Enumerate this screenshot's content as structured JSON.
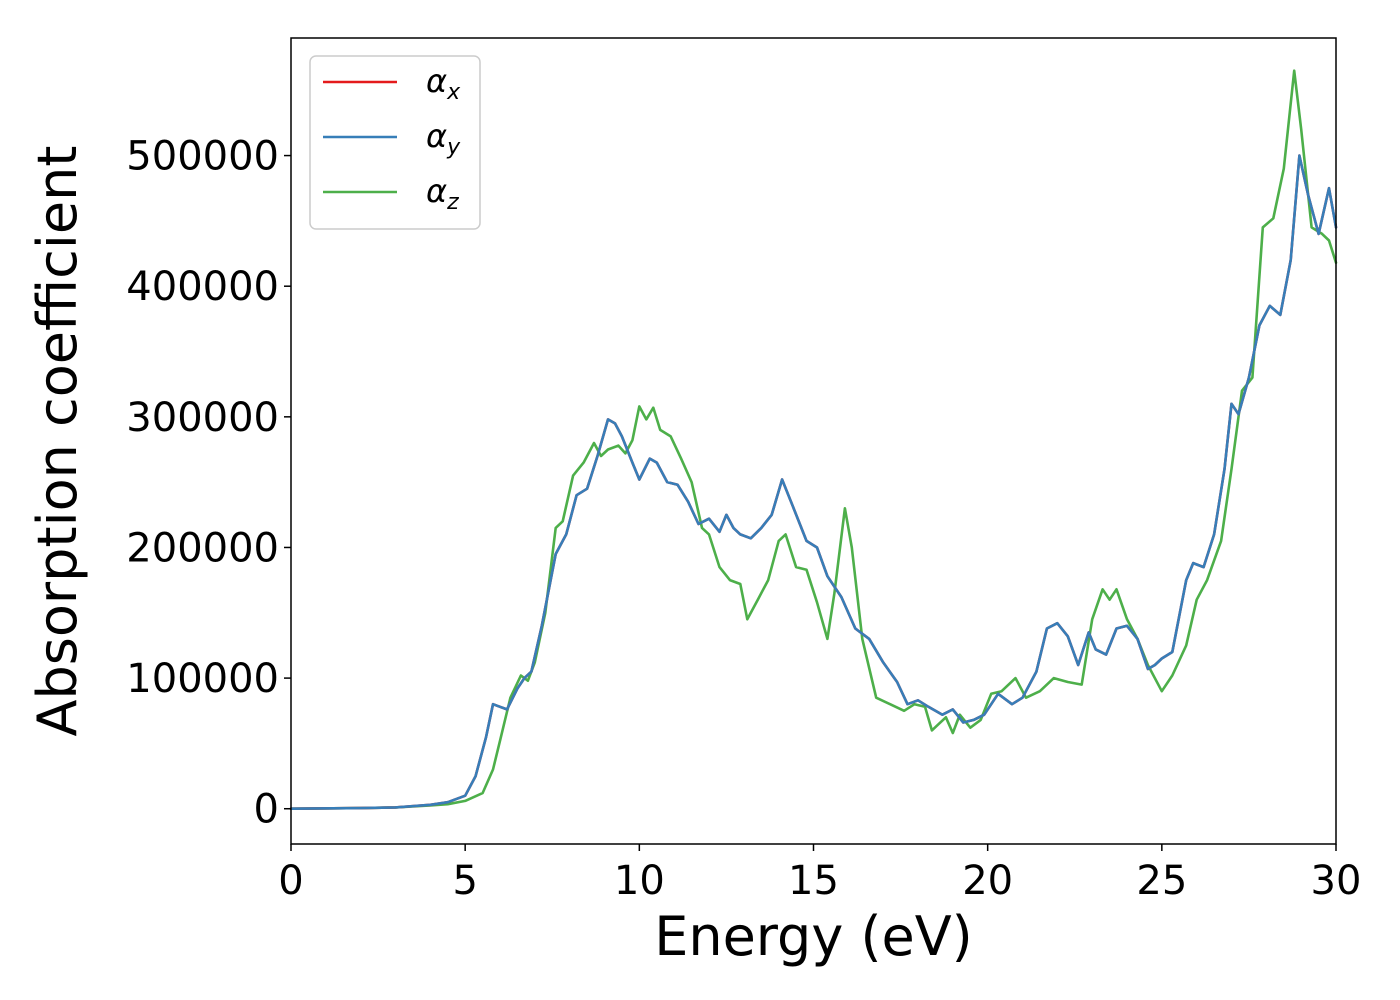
{
  "chart_data": {
    "type": "line",
    "xlabel": "Energy (eV)",
    "ylabel": "Absorption coefficient",
    "xlim": [
      0,
      30
    ],
    "ylim": [
      -27000,
      590000
    ],
    "xticks": [
      0,
      5,
      10,
      15,
      20,
      25,
      30
    ],
    "xtick_labels": [
      "0",
      "5",
      "10",
      "15",
      "20",
      "25",
      "30"
    ],
    "yticks": [
      0,
      100000,
      200000,
      300000,
      400000,
      500000
    ],
    "ytick_labels": [
      "0",
      "100000",
      "200000",
      "300000",
      "400000",
      "500000"
    ],
    "grid": false,
    "legend_position": "upper-left",
    "series": [
      {
        "name": "αx",
        "symbol": "α",
        "subscript": "x",
        "color": "#e41a1c",
        "x": [
          0,
          2,
          3,
          4,
          4.5,
          5,
          5.3,
          5.6,
          5.8,
          6.0,
          6.2,
          6.5,
          6.7,
          6.9,
          7.2,
          7.6,
          7.9,
          8.2,
          8.5,
          8.8,
          9.1,
          9.3,
          9.5,
          9.8,
          10.0,
          10.3,
          10.5,
          10.8,
          11.1,
          11.4,
          11.7,
          12.0,
          12.3,
          12.5,
          12.7,
          12.9,
          13.2,
          13.5,
          13.8,
          14.1,
          14.4,
          14.8,
          15.1,
          15.4,
          15.8,
          16.2,
          16.6,
          17.0,
          17.4,
          17.7,
          18.0,
          18.3,
          18.7,
          19.0,
          19.3,
          19.6,
          19.9,
          20.3,
          20.7,
          21.0,
          21.4,
          21.7,
          22.0,
          22.3,
          22.6,
          22.9,
          23.1,
          23.4,
          23.7,
          24.0,
          24.3,
          24.6,
          24.8,
          25.0,
          25.3,
          25.7,
          25.9,
          26.2,
          26.5,
          26.8,
          27.0,
          27.2,
          27.5,
          27.8,
          28.1,
          28.4,
          28.7,
          28.95,
          29.2,
          29.5,
          29.8,
          30.0
        ],
        "y": [
          0,
          500,
          1000,
          3000,
          5000,
          10000,
          25000,
          55000,
          80000,
          78000,
          76000,
          92000,
          100000,
          105000,
          140000,
          195000,
          210000,
          240000,
          245000,
          270000,
          298000,
          295000,
          285000,
          265000,
          252000,
          268000,
          265000,
          250000,
          248000,
          235000,
          218000,
          222000,
          212000,
          225000,
          215000,
          210000,
          207000,
          215000,
          225000,
          252000,
          232000,
          205000,
          200000,
          178000,
          162000,
          138000,
          130000,
          112000,
          97000,
          80000,
          83000,
          78000,
          72000,
          76000,
          66000,
          68000,
          72000,
          88000,
          80000,
          85000,
          105000,
          138000,
          142000,
          132000,
          110000,
          135000,
          122000,
          118000,
          138000,
          140000,
          130000,
          107000,
          110000,
          115000,
          120000,
          175000,
          188000,
          185000,
          210000,
          260000,
          310000,
          302000,
          330000,
          370000,
          385000,
          378000,
          420000,
          500000,
          470000,
          440000,
          475000,
          445000
        ]
      },
      {
        "name": "αy",
        "symbol": "α",
        "subscript": "y",
        "color": "#377eb8",
        "x": [
          0,
          2,
          3,
          4,
          4.5,
          5,
          5.3,
          5.6,
          5.8,
          6.0,
          6.2,
          6.5,
          6.7,
          6.9,
          7.2,
          7.6,
          7.9,
          8.2,
          8.5,
          8.8,
          9.1,
          9.3,
          9.5,
          9.8,
          10.0,
          10.3,
          10.5,
          10.8,
          11.1,
          11.4,
          11.7,
          12.0,
          12.3,
          12.5,
          12.7,
          12.9,
          13.2,
          13.5,
          13.8,
          14.1,
          14.4,
          14.8,
          15.1,
          15.4,
          15.8,
          16.2,
          16.6,
          17.0,
          17.4,
          17.7,
          18.0,
          18.3,
          18.7,
          19.0,
          19.3,
          19.6,
          19.9,
          20.3,
          20.7,
          21.0,
          21.4,
          21.7,
          22.0,
          22.3,
          22.6,
          22.9,
          23.1,
          23.4,
          23.7,
          24.0,
          24.3,
          24.6,
          24.8,
          25.0,
          25.3,
          25.7,
          25.9,
          26.2,
          26.5,
          26.8,
          27.0,
          27.2,
          27.5,
          27.8,
          28.1,
          28.4,
          28.7,
          28.95,
          29.2,
          29.5,
          29.8,
          30.0
        ],
        "y": [
          0,
          500,
          1000,
          3000,
          5000,
          10000,
          25000,
          55000,
          80000,
          78000,
          76000,
          92000,
          100000,
          105000,
          140000,
          195000,
          210000,
          240000,
          245000,
          270000,
          298000,
          295000,
          285000,
          265000,
          252000,
          268000,
          265000,
          250000,
          248000,
          235000,
          218000,
          222000,
          212000,
          225000,
          215000,
          210000,
          207000,
          215000,
          225000,
          252000,
          232000,
          205000,
          200000,
          178000,
          162000,
          138000,
          130000,
          112000,
          97000,
          80000,
          83000,
          78000,
          72000,
          76000,
          66000,
          68000,
          72000,
          88000,
          80000,
          85000,
          105000,
          138000,
          142000,
          132000,
          110000,
          135000,
          122000,
          118000,
          138000,
          140000,
          130000,
          107000,
          110000,
          115000,
          120000,
          175000,
          188000,
          185000,
          210000,
          260000,
          310000,
          302000,
          330000,
          370000,
          385000,
          378000,
          420000,
          500000,
          470000,
          440000,
          475000,
          445000
        ]
      },
      {
        "name": "αz",
        "symbol": "α",
        "subscript": "z",
        "color": "#4daf4a",
        "x": [
          0,
          2,
          3,
          4,
          4.5,
          5,
          5.5,
          5.8,
          6.0,
          6.3,
          6.6,
          6.8,
          7.0,
          7.3,
          7.6,
          7.8,
          8.1,
          8.4,
          8.7,
          8.9,
          9.1,
          9.4,
          9.6,
          9.8,
          10.0,
          10.2,
          10.4,
          10.6,
          10.9,
          11.2,
          11.5,
          11.8,
          12.0,
          12.3,
          12.6,
          12.9,
          13.1,
          13.4,
          13.7,
          14.0,
          14.2,
          14.5,
          14.8,
          15.1,
          15.4,
          15.6,
          15.9,
          16.1,
          16.4,
          16.8,
          17.2,
          17.6,
          17.9,
          18.2,
          18.4,
          18.6,
          18.8,
          19.0,
          19.2,
          19.5,
          19.8,
          20.1,
          20.4,
          20.8,
          21.1,
          21.5,
          21.9,
          22.3,
          22.7,
          23.0,
          23.3,
          23.5,
          23.7,
          24.0,
          24.3,
          24.6,
          25.0,
          25.3,
          25.7,
          26.0,
          26.3,
          26.7,
          27.0,
          27.3,
          27.6,
          27.9,
          28.2,
          28.5,
          28.8,
          29.0,
          29.3,
          29.6,
          29.8,
          30.0
        ],
        "y": [
          0,
          500,
          1000,
          2500,
          3500,
          6000,
          12000,
          30000,
          52000,
          85000,
          102000,
          98000,
          112000,
          150000,
          215000,
          220000,
          255000,
          265000,
          280000,
          270000,
          275000,
          278000,
          272000,
          282000,
          308000,
          298000,
          307000,
          290000,
          285000,
          268000,
          250000,
          215000,
          210000,
          185000,
          175000,
          172000,
          145000,
          160000,
          175000,
          205000,
          210000,
          185000,
          183000,
          158000,
          130000,
          165000,
          230000,
          200000,
          130000,
          85000,
          80000,
          75000,
          80000,
          78000,
          60000,
          65000,
          70000,
          58000,
          72000,
          62000,
          68000,
          88000,
          90000,
          100000,
          85000,
          90000,
          100000,
          97000,
          95000,
          145000,
          168000,
          160000,
          168000,
          145000,
          130000,
          110000,
          90000,
          102000,
          125000,
          160000,
          175000,
          205000,
          260000,
          320000,
          330000,
          445000,
          452000,
          490000,
          565000,
          520000,
          445000,
          440000,
          435000,
          418000
        ]
      }
    ]
  }
}
